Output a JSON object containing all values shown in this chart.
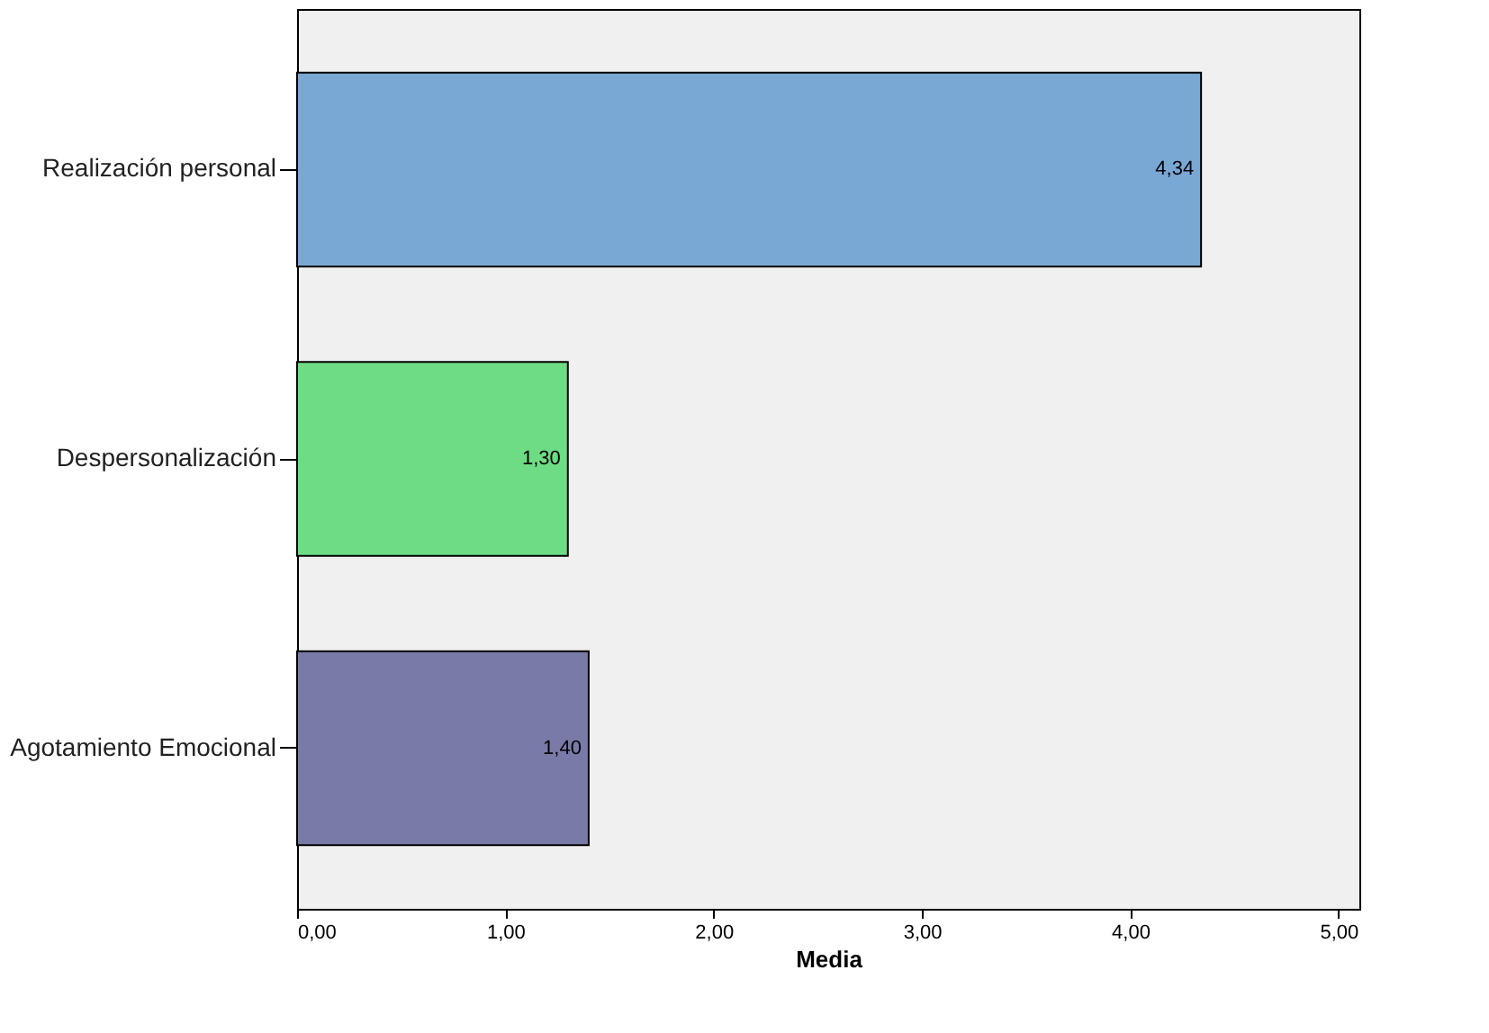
{
  "chart_data": {
    "type": "bar",
    "orientation": "horizontal",
    "xlabel": "Media",
    "categories": [
      "Realización personal",
      "Despersonalización",
      "Agotamiento Emocional"
    ],
    "values": [
      4.34,
      1.3,
      1.4
    ],
    "colors": [
      "#79a8d5",
      "#6edc84",
      "#7a7aa8"
    ],
    "value_labels": [
      "4,34",
      "1,30",
      "1,40"
    ],
    "xlim": [
      0,
      5.1
    ],
    "xticks": [
      {
        "value": 0,
        "label": "0,00"
      },
      {
        "value": 1,
        "label": "1,00"
      },
      {
        "value": 2,
        "label": "2,00"
      },
      {
        "value": 3,
        "label": "3,00"
      },
      {
        "value": 4,
        "label": "4,00"
      },
      {
        "value": 5,
        "label": "5,00"
      }
    ],
    "grid": false
  }
}
